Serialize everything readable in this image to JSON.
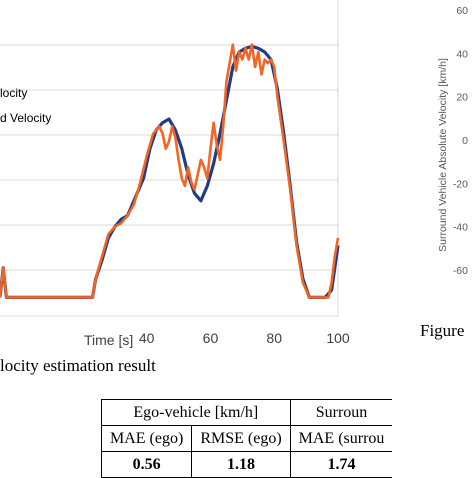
{
  "chart_data": {
    "type": "line",
    "x_ticks": [
      "40",
      "60",
      "80",
      "100"
    ],
    "xlabel": "Time [s]",
    "xlim": [
      -6,
      100
    ],
    "ylim": [
      -5,
      80
    ],
    "grid": "horizontal",
    "legend_entries": [
      "locity",
      "d Velocity"
    ],
    "legend_placement": "top-left",
    "series": [
      {
        "color": "#1f3c88",
        "points": [
          [
            -6,
            0
          ],
          [
            -5,
            8
          ],
          [
            -4,
            0
          ],
          [
            0,
            0
          ],
          [
            20,
            0
          ],
          [
            23,
            0
          ],
          [
            24,
            5
          ],
          [
            26,
            10
          ],
          [
            28,
            16
          ],
          [
            30,
            19
          ],
          [
            32,
            21
          ],
          [
            34,
            22
          ],
          [
            35,
            24
          ],
          [
            37,
            28
          ],
          [
            39,
            32
          ],
          [
            41,
            40
          ],
          [
            43,
            45
          ],
          [
            45,
            47
          ],
          [
            47,
            48
          ],
          [
            49,
            45
          ],
          [
            51,
            40
          ],
          [
            53,
            33
          ],
          [
            55,
            28
          ],
          [
            57,
            26
          ],
          [
            59,
            30
          ],
          [
            61,
            36
          ],
          [
            63,
            44
          ],
          [
            65,
            53
          ],
          [
            67,
            62
          ],
          [
            69,
            66
          ],
          [
            71,
            67
          ],
          [
            73,
            67.5
          ],
          [
            75,
            67
          ],
          [
            77,
            66
          ],
          [
            79,
            64
          ],
          [
            81,
            56
          ],
          [
            83,
            44
          ],
          [
            85,
            30
          ],
          [
            87,
            15
          ],
          [
            89,
            5
          ],
          [
            91,
            0
          ],
          [
            92,
            0
          ],
          [
            94,
            0
          ],
          [
            96,
            0
          ],
          [
            98,
            2
          ],
          [
            100,
            14
          ]
        ]
      },
      {
        "color": "#f26522",
        "points": [
          [
            -6,
            0
          ],
          [
            -5,
            8
          ],
          [
            -4,
            0
          ],
          [
            0,
            0
          ],
          [
            20,
            0
          ],
          [
            23,
            0
          ],
          [
            24,
            5
          ],
          [
            26,
            11
          ],
          [
            28,
            17
          ],
          [
            30,
            19
          ],
          [
            32,
            20
          ],
          [
            34,
            22
          ],
          [
            36,
            25
          ],
          [
            38,
            31
          ],
          [
            40,
            38
          ],
          [
            42,
            44
          ],
          [
            44,
            46
          ],
          [
            45,
            44
          ],
          [
            46,
            40
          ],
          [
            47,
            42
          ],
          [
            48,
            46
          ],
          [
            49,
            43
          ],
          [
            50,
            37
          ],
          [
            51,
            32
          ],
          [
            52,
            30
          ],
          [
            53,
            35
          ],
          [
            54,
            31
          ],
          [
            55,
            29
          ],
          [
            56,
            33
          ],
          [
            57,
            37
          ],
          [
            58,
            35
          ],
          [
            59,
            32
          ],
          [
            60,
            40
          ],
          [
            61,
            47
          ],
          [
            62,
            41
          ],
          [
            63,
            37
          ],
          [
            64,
            46
          ],
          [
            65,
            58
          ],
          [
            66,
            63
          ],
          [
            67,
            68
          ],
          [
            68,
            61
          ],
          [
            69,
            66
          ],
          [
            70,
            64
          ],
          [
            71,
            67
          ],
          [
            72,
            64
          ],
          [
            73,
            68
          ],
          [
            74,
            62
          ],
          [
            75,
            66
          ],
          [
            76,
            60
          ],
          [
            77,
            64
          ],
          [
            78,
            63
          ],
          [
            79,
            64
          ],
          [
            80,
            62
          ],
          [
            81,
            54
          ],
          [
            83,
            42
          ],
          [
            85,
            29
          ],
          [
            87,
            14
          ],
          [
            89,
            4
          ],
          [
            91,
            0
          ],
          [
            93,
            0
          ],
          [
            95,
            0
          ],
          [
            97,
            0
          ],
          [
            98,
            4
          ],
          [
            99,
            11
          ],
          [
            100,
            16
          ]
        ]
      }
    ]
  },
  "right_axis": {
    "ticks": [
      "60",
      "40",
      "20",
      "0",
      "-20",
      "-40",
      "-60"
    ],
    "label": "Surround Vehicle Absolute Velocity [km/h]"
  },
  "captions": {
    "left": "locity estimation result",
    "right": "Figure"
  },
  "table": {
    "header_ego": "Ego-vehicle [km/h]",
    "header_surround": "Surroun",
    "col1": "MAE (ego)",
    "col2": "RMSE (ego)",
    "col3": "MAE (surrou",
    "val1": "0.56",
    "val2": "1.18",
    "val3": "1.74"
  }
}
